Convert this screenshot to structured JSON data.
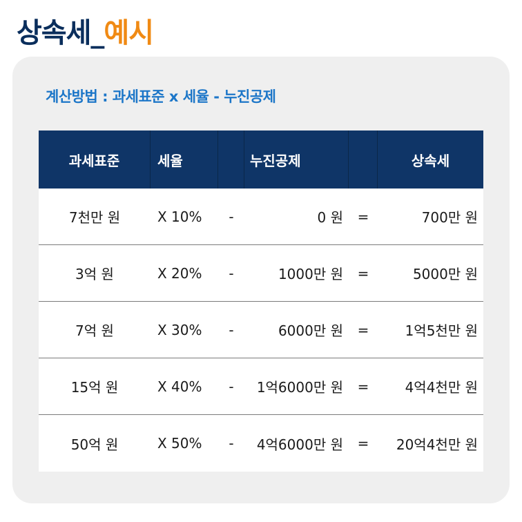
{
  "title": {
    "main": "상속세_",
    "accent": "예시"
  },
  "formula": "계산방법 : 과세표준 x 세율 - 누진공제",
  "table": {
    "headers": [
      "과세표준",
      "세율",
      "",
      "누진공제",
      "",
      "상속세"
    ],
    "rows": [
      {
        "base": "7천만 원",
        "rate": "X  10%",
        "minus": "-",
        "deduction": "0 원",
        "equals": "=",
        "tax": "700만 원"
      },
      {
        "base": "3억 원",
        "rate": "X  20%",
        "minus": "-",
        "deduction": "1000만 원",
        "equals": "=",
        "tax": "5000만 원"
      },
      {
        "base": "7억 원",
        "rate": "X  30%",
        "minus": "-",
        "deduction": "6000만 원",
        "equals": "=",
        "tax": "1억5천만 원"
      },
      {
        "base": "15억 원",
        "rate": "X  40%",
        "minus": "-",
        "deduction": "1억6000만 원",
        "equals": "=",
        "tax": "4억4천만 원"
      },
      {
        "base": "50억 원",
        "rate": "X  50%",
        "minus": "-",
        "deduction": "4억6000만 원",
        "equals": "=",
        "tax": "20억4천만 원"
      }
    ]
  },
  "colors": {
    "title_main": "#0a2e5c",
    "title_accent": "#f08a14",
    "formula": "#1c76c8",
    "header_bg": "#0f3567",
    "card_bg": "#efefef"
  }
}
